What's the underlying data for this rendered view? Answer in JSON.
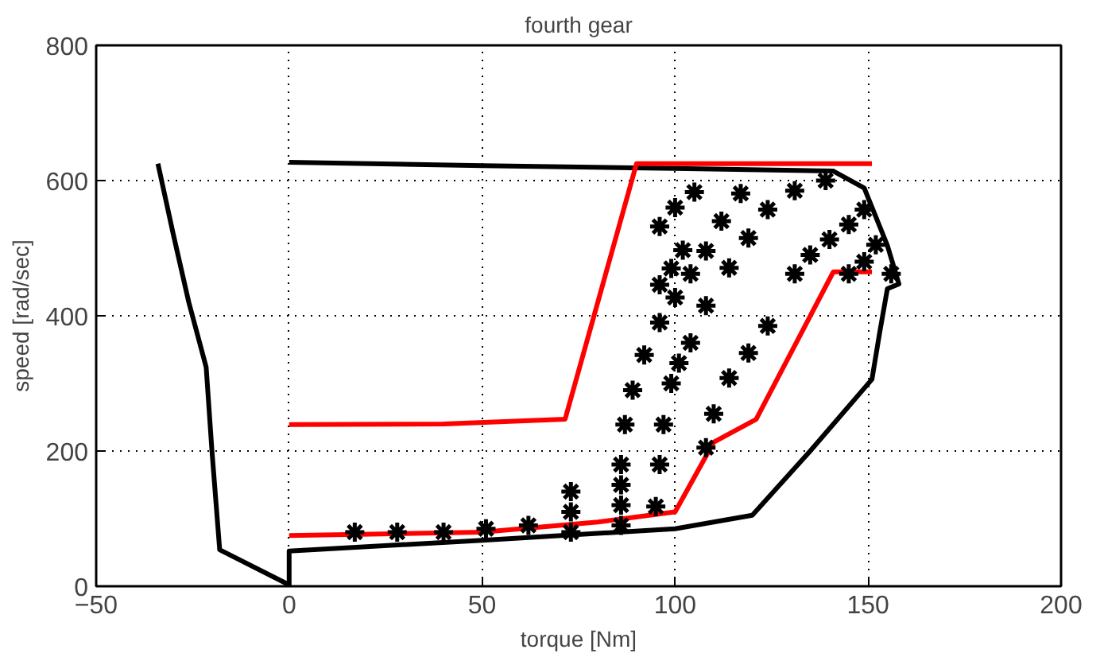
{
  "chart_data": {
    "type": "line",
    "title": "fourth gear",
    "xlabel": "torque [Nm]",
    "ylabel": "speed [rad/sec]",
    "xlim": [
      -50,
      200
    ],
    "ylim": [
      0,
      800
    ],
    "xticks": [
      -50,
      0,
      50,
      100,
      150,
      200
    ],
    "yticks": [
      0,
      200,
      400,
      600,
      800
    ],
    "grid": true,
    "line_style": "solid",
    "series": [
      {
        "color": "#000000",
        "x": [
          -34,
          -30,
          -26,
          -21.5,
          -20,
          -18,
          0,
          0,
          50,
          100,
          120,
          135,
          151,
          153,
          155,
          158,
          155,
          149,
          141,
          100,
          50,
          0
        ],
        "values": [
          625,
          520,
          420,
          324,
          200,
          54,
          2,
          52,
          68,
          85,
          105,
          200,
          306,
          375,
          440,
          447,
          504,
          589,
          614,
          618,
          622,
          627
        ]
      },
      {
        "color": "#ff0000",
        "x": [
          0,
          50,
          80,
          100,
          110,
          121,
          141,
          151
        ],
        "values": [
          75,
          80,
          95,
          110,
          213,
          247,
          465,
          465
        ]
      },
      {
        "color": "#ff0000",
        "x": [
          0,
          40,
          71.5,
          90,
          151
        ],
        "values": [
          239,
          240,
          247,
          625,
          625
        ]
      },
      {
        "type": "scatter",
        "marker": "cross",
        "color": "#000000",
        "x": [
          17,
          28,
          40,
          51,
          62,
          73,
          73,
          73,
          86,
          86,
          86,
          86,
          87,
          89,
          92,
          96,
          100,
          104,
          108,
          112,
          117,
          95,
          96,
          97,
          99,
          101,
          104,
          108,
          114,
          119,
          124,
          131,
          139,
          108,
          110,
          114,
          119,
          124,
          131,
          135,
          140,
          145,
          149,
          145,
          149,
          152,
          156,
          96,
          100,
          105,
          96,
          99,
          102
        ],
        "values": [
          80,
          80,
          80,
          85,
          90,
          80,
          110,
          140,
          90,
          120,
          150,
          180,
          239,
          290,
          342,
          390,
          427,
          462,
          496,
          540,
          581,
          118,
          180,
          239,
          300,
          330,
          360,
          415,
          471,
          515,
          557,
          585,
          600,
          205,
          255,
          308,
          345,
          385,
          462,
          490,
          513,
          535,
          557,
          462,
          480,
          505,
          462,
          532,
          560,
          583,
          446,
          470,
          497
        ]
      }
    ]
  }
}
